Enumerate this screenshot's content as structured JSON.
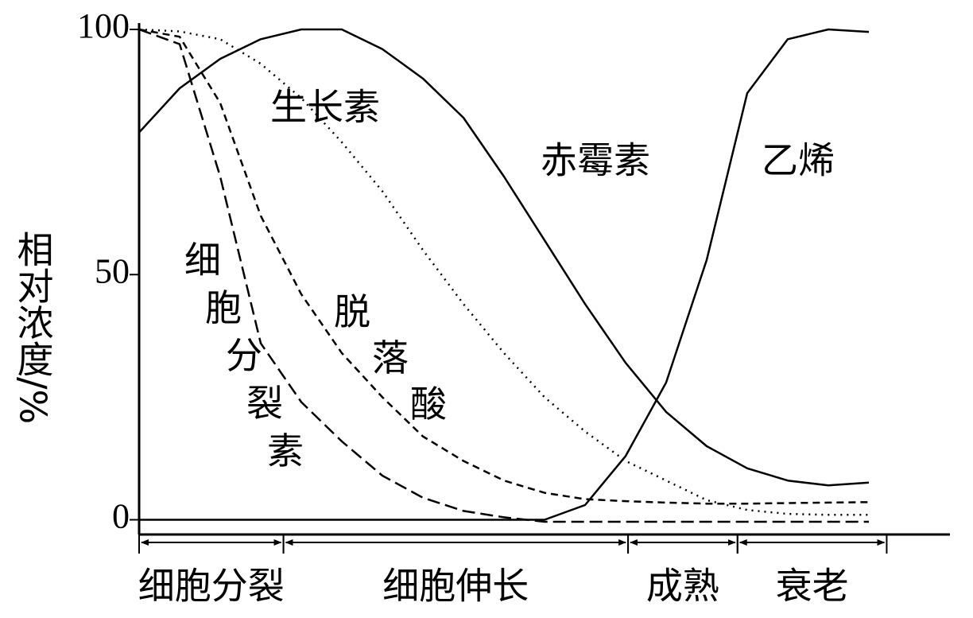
{
  "chart_data": {
    "type": "line",
    "ylabel": "相对浓度/%",
    "xlim": [
      0,
      100
    ],
    "ylim": [
      -3,
      100
    ],
    "yticks": [
      0,
      50,
      100
    ],
    "x": [
      0,
      5,
      10,
      15,
      20,
      25,
      30,
      35,
      40,
      45,
      50,
      55,
      60,
      65,
      70,
      75,
      80,
      85,
      90
    ],
    "stages": [
      {
        "label": "细胞分裂",
        "start": 0,
        "end": 17.8
      },
      {
        "label": "细胞伸长",
        "start": 17.8,
        "end": 60.3
      },
      {
        "label": "成熟",
        "start": 60.3,
        "end": 73.8
      },
      {
        "label": "衰老",
        "start": 73.8,
        "end": 92.2
      }
    ],
    "series": [
      {
        "name": "赤霉素",
        "color": "#000000",
        "style": "solid",
        "values": [
          79,
          88,
          94,
          98,
          100,
          100,
          96,
          90,
          82,
          70,
          57,
          44,
          32,
          22,
          15,
          10.5,
          8,
          7,
          7.6
        ]
      },
      {
        "name": "乙烯",
        "color": "#000000",
        "style": "solid",
        "values": [
          0,
          0,
          0,
          0,
          0,
          0,
          0,
          0,
          0,
          0,
          0,
          3,
          13,
          28,
          53,
          87,
          98,
          100,
          99.5
        ]
      },
      {
        "name": "生长素",
        "color": "#000000",
        "style": "dotted",
        "values": [
          100,
          99.6,
          98,
          93,
          86,
          77,
          67,
          55,
          44,
          34,
          25,
          18,
          12,
          8,
          4,
          2,
          1.2,
          1,
          1
        ]
      },
      {
        "name": "脱落酸",
        "color": "#000000",
        "style": "dashed",
        "values": [
          100,
          98.5,
          85,
          62,
          46,
          34,
          25,
          17,
          12,
          8,
          5.5,
          4.2,
          3.8,
          3.5,
          3.3,
          3.3,
          3.4,
          3.5,
          3.6
        ]
      },
      {
        "name": "细胞分裂素",
        "color": "#000000",
        "style": "long-dashed",
        "values": [
          100,
          97,
          70,
          36,
          24,
          16,
          9,
          4.5,
          1.8,
          0.5,
          -0.4,
          -0.4,
          -0.4,
          -0.4,
          -0.4,
          -0.4,
          -0.4,
          -0.4,
          -0.4
        ]
      }
    ]
  }
}
